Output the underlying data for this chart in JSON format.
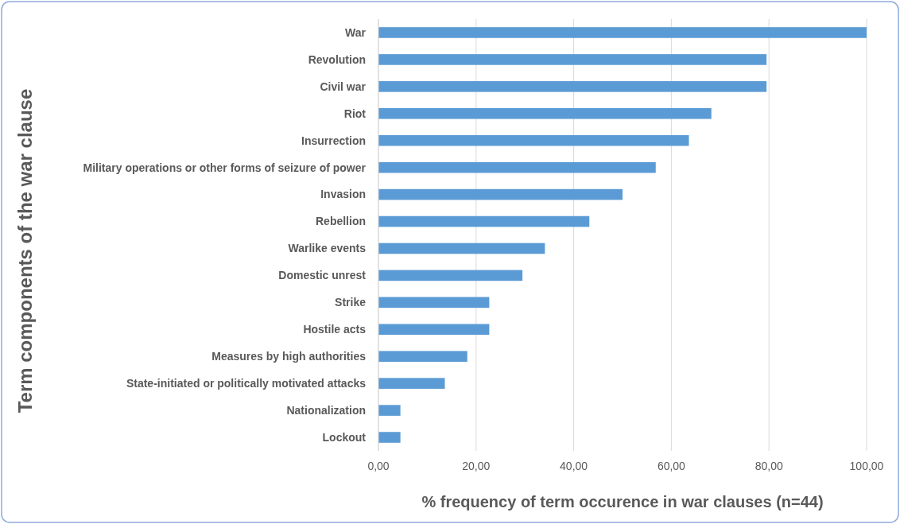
{
  "chart_data": {
    "type": "bar",
    "orientation": "horizontal",
    "xlabel": "% frequency of term occurence in war clauses (n=44)",
    "ylabel": "Term components of the war clause",
    "categories": [
      "War",
      "Revolution",
      "Civil war",
      "Riot",
      "Insurrection",
      "Military operations or other forms of seizure of power",
      "Invasion",
      "Rebellion",
      "Warlike events",
      "Domestic unrest",
      "Strike",
      "Hostile acts",
      "Measures by high authorities",
      "State-initiated or politically motivated attacks",
      "Nationalization",
      "Lockout"
    ],
    "values": [
      100,
      79.5,
      79.5,
      68.2,
      63.6,
      56.8,
      50,
      43.2,
      34.1,
      29.5,
      22.7,
      22.7,
      18.2,
      13.6,
      4.5,
      4.5
    ],
    "color": "#5b9bd5",
    "xlim": [
      0,
      100
    ],
    "xticks": [
      {
        "value": 0,
        "label": "0,00"
      },
      {
        "value": 20,
        "label": "20,00"
      },
      {
        "value": 40,
        "label": "40,00"
      },
      {
        "value": 60,
        "label": "60,00"
      },
      {
        "value": 80,
        "label": "80,00"
      },
      {
        "value": 100,
        "label": "100,00"
      }
    ],
    "grid": "x"
  }
}
